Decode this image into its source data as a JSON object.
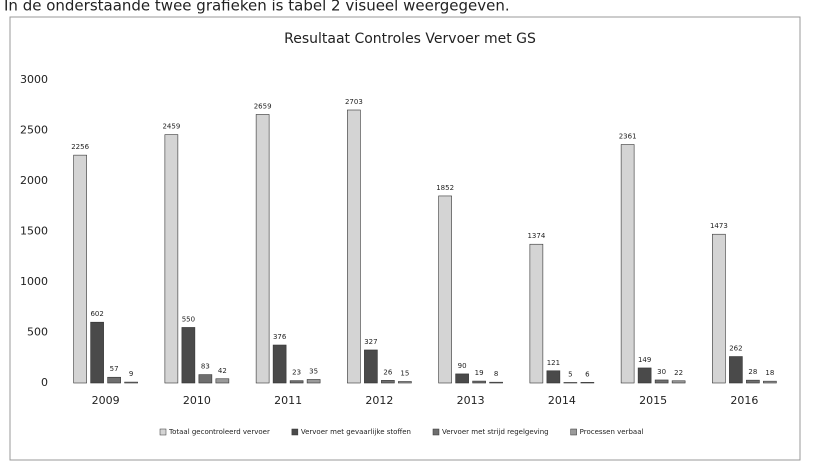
{
  "page_heading": "In de onderstaande twee grafieken is tabel 2 visueel weergegeven.",
  "chart_data": {
    "type": "bar",
    "title": "Resultaat Controles Vervoer met GS",
    "categories": [
      "2009",
      "2010",
      "2011",
      "2012",
      "2013",
      "2014",
      "2015",
      "2016"
    ],
    "series": [
      {
        "name": "Totaal gecontroleerd vervoer",
        "color": "#d4d4d4",
        "values": [
          2256,
          2459,
          2659,
          2703,
          1852,
          1374,
          2361,
          1473
        ]
      },
      {
        "name": "Vervoer met gevaarlijke stoffen",
        "color": "#4a4a4a",
        "values": [
          602,
          550,
          376,
          327,
          90,
          121,
          149,
          262
        ]
      },
      {
        "name": "Vervoer met strijd regelgeving",
        "color": "#6e6e6e",
        "values": [
          57,
          83,
          23,
          26,
          19,
          5,
          30,
          28
        ]
      },
      {
        "name": "Processen verbaal",
        "color": "#9a9a9a",
        "values": [
          9,
          42,
          35,
          15,
          8,
          6,
          22,
          18
        ]
      }
    ],
    "ylim": [
      0,
      3000
    ],
    "yticks": [
      0,
      500,
      1000,
      1500,
      2000,
      2500,
      3000
    ],
    "grid": false,
    "legend": "bottom"
  }
}
